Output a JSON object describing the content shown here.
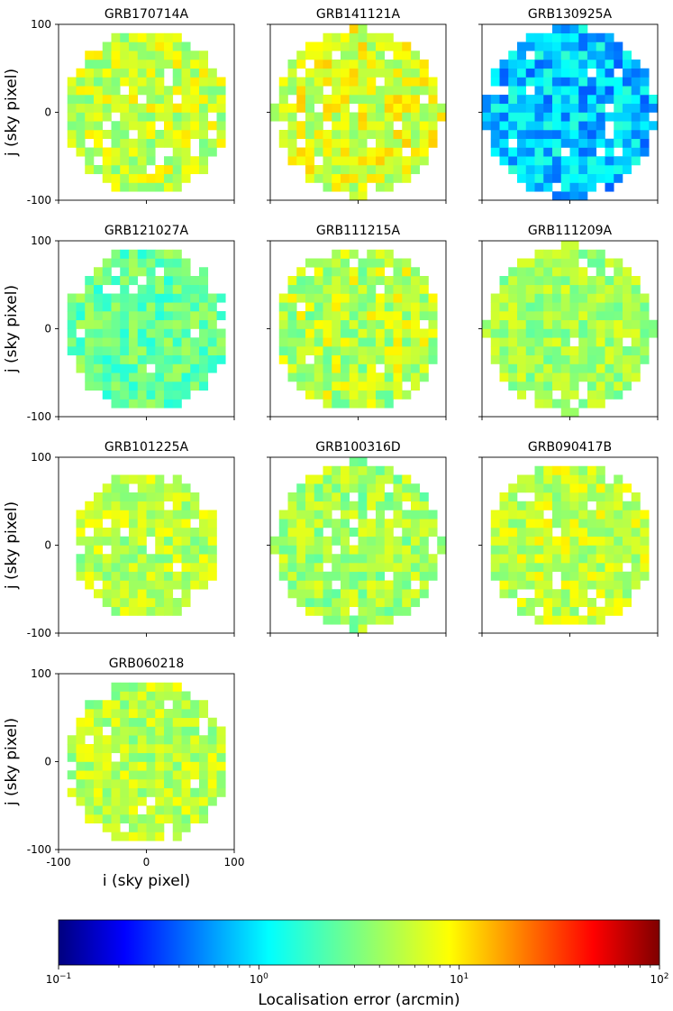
{
  "figure": {
    "panels_per_row": 3
  },
  "chart_data": {
    "type": "heatmap",
    "panel_titles": [
      "GRB170714A",
      "GRB141121A",
      "GRB130925A",
      "GRB121027A",
      "GRB111215A",
      "GRB111209A",
      "GRB101225A",
      "GRB100316D",
      "GRB090417B",
      "GRB060218"
    ],
    "xlabel": "i (sky pixel)",
    "ylabel": "j (sky pixel)",
    "xlim": [
      -100,
      100
    ],
    "ylim": [
      -100,
      100
    ],
    "xticks": [
      -100,
      0,
      100
    ],
    "yticks": [
      100,
      0,
      -100
    ],
    "tick_labels": {
      "x": [
        "-100",
        "0",
        "100"
      ],
      "y": [
        "100",
        "0",
        "-100"
      ]
    },
    "grid": false,
    "cell_size_sky_pixels": 10,
    "colorbar": {
      "label": "Localisation error (arcmin)",
      "scale": "log",
      "range": [
        0.1,
        100
      ],
      "ticks": [
        0.1,
        1,
        10,
        100
      ],
      "tick_labels": [
        {
          "base": "10",
          "exp": "−1"
        },
        {
          "base": "10",
          "exp": "0"
        },
        {
          "base": "10",
          "exp": "1"
        },
        {
          "base": "10",
          "exp": "2"
        }
      ],
      "colormap": "jet",
      "colors": [
        "#00007f",
        "#0000ff",
        "#007fff",
        "#00ffff",
        "#7fff7f",
        "#ffff00",
        "#ff7f00",
        "#ff0000",
        "#7f0000"
      ]
    },
    "series": [
      {
        "name": "GRB170714A",
        "typical_error_arcmin": 5.5,
        "error_spread_dex": 0.18,
        "footprint_radius": 92
      },
      {
        "name": "GRB141121A",
        "typical_error_arcmin": 6.5,
        "error_spread_dex": 0.18,
        "footprint_radius": 96
      },
      {
        "name": "GRB130925A",
        "typical_error_arcmin": 0.8,
        "error_spread_dex": 0.2,
        "footprint_radius": 98
      },
      {
        "name": "GRB121027A",
        "typical_error_arcmin": 2.6,
        "error_spread_dex": 0.16,
        "footprint_radius": 93
      },
      {
        "name": "GRB111215A",
        "typical_error_arcmin": 5.0,
        "error_spread_dex": 0.2,
        "footprint_radius": 95
      },
      {
        "name": "GRB111209A",
        "typical_error_arcmin": 4.2,
        "error_spread_dex": 0.15,
        "footprint_radius": 96
      },
      {
        "name": "GRB101225A",
        "typical_error_arcmin": 5.0,
        "error_spread_dex": 0.16,
        "footprint_radius": 85
      },
      {
        "name": "GRB100316D",
        "typical_error_arcmin": 4.2,
        "error_spread_dex": 0.16,
        "footprint_radius": 96
      },
      {
        "name": "GRB090417B",
        "typical_error_arcmin": 5.5,
        "error_spread_dex": 0.16,
        "footprint_radius": 95
      },
      {
        "name": "GRB060218",
        "typical_error_arcmin": 5.0,
        "error_spread_dex": 0.16,
        "footprint_radius": 92
      }
    ]
  }
}
